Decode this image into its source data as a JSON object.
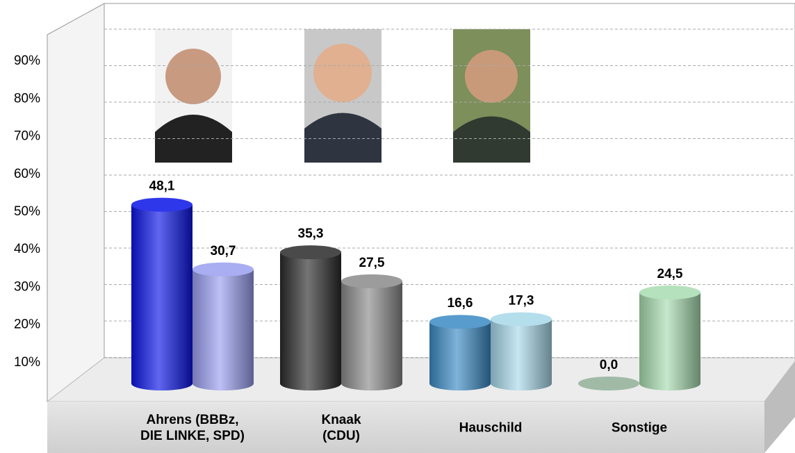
{
  "chart_data": {
    "type": "cylinder-bar",
    "categories": [
      "Ahrens (BBBz,\nDIE LINKE, SPD)",
      "Knaak\n(CDU)",
      "Hauschild",
      "Sonstige"
    ],
    "series": [
      {
        "colors": [
          "#0a14e6",
          "#2a2a2a",
          "#3a8ac4",
          "#8fae96"
        ],
        "values": [
          48.1,
          35.3,
          16.6,
          0.0
        ],
        "value_labels": [
          "48,1",
          "35,3",
          "16,6",
          "0,0"
        ]
      },
      {
        "colors": [
          "#9a9ef0",
          "#8a8a8a",
          "#a8d8ea",
          "#a8dcb0"
        ],
        "values": [
          30.7,
          27.5,
          17.3,
          24.5
        ],
        "value_labels": [
          "30,7",
          "27,5",
          "17,3",
          "24,5"
        ]
      }
    ],
    "ylim": [
      0,
      100
    ],
    "yticks": [
      {
        "value": 10,
        "label": "10%"
      },
      {
        "value": 20,
        "label": "20%"
      },
      {
        "value": 30,
        "label": "30%"
      },
      {
        "value": 40,
        "label": "40%"
      },
      {
        "value": 50,
        "label": "50%"
      },
      {
        "value": 60,
        "label": "60%"
      },
      {
        "value": 70,
        "label": "70%"
      },
      {
        "value": 80,
        "label": "80%"
      },
      {
        "value": 90,
        "label": "90%"
      }
    ],
    "grid": true
  }
}
